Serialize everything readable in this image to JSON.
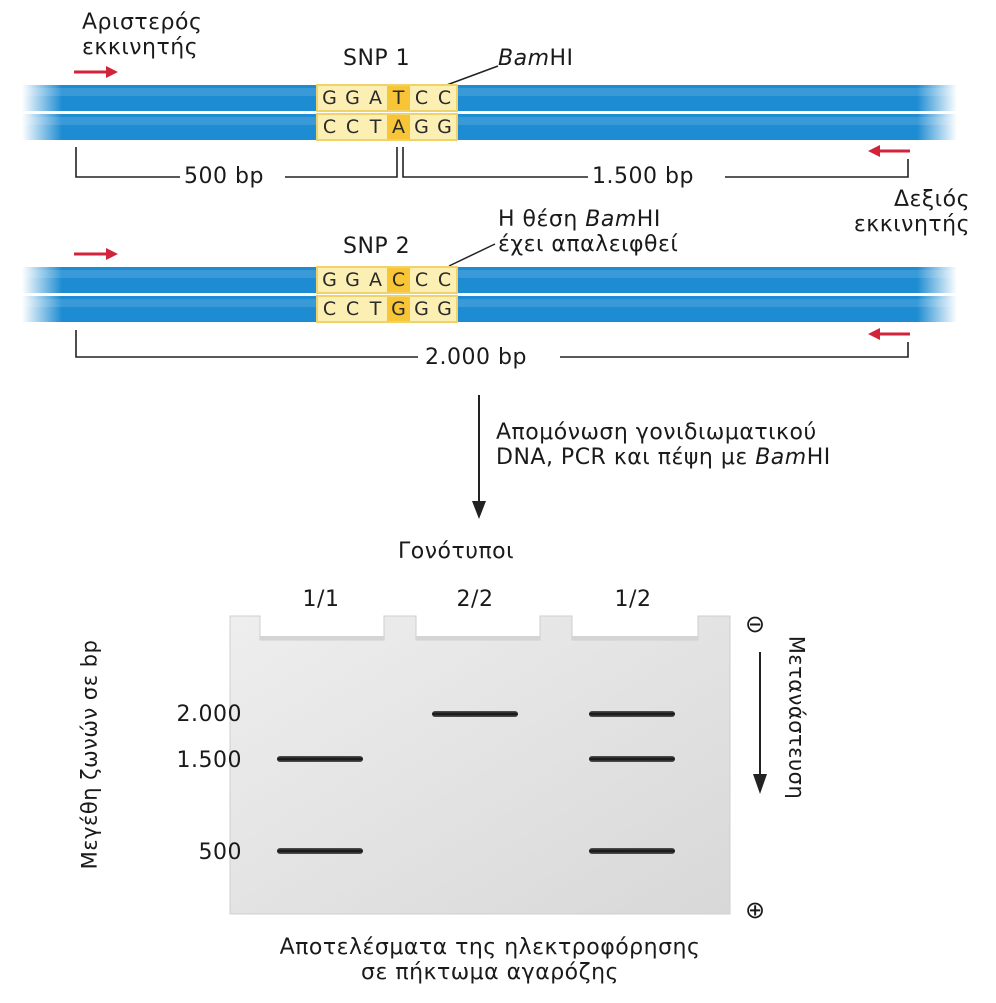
{
  "primers": {
    "left_label": [
      "Αριστερός",
      "εκκινητής"
    ],
    "right_label": [
      "Δεξιός",
      "εκκινητής"
    ]
  },
  "snp1": {
    "label": "SNP 1",
    "site_label": "Bam",
    "site_label_suffix": "HI",
    "top_strand": [
      "G",
      "G",
      "A",
      "T",
      "C",
      "C"
    ],
    "bottom_strand": [
      "C",
      "C",
      "T",
      "A",
      "G",
      "G"
    ],
    "highlight_index": 3,
    "left_fragment": "500 bp",
    "right_fragment": "1.500 bp"
  },
  "snp2": {
    "label": "SNP 2",
    "note_line1_prefix": "Η θέση ",
    "note_line1_em": "Bam",
    "note_line1_suffix": "HI",
    "note_line2": "έχει απαλειφθεί",
    "top_strand": [
      "G",
      "G",
      "A",
      "C",
      "C",
      "C"
    ],
    "bottom_strand": [
      "C",
      "C",
      "T",
      "G",
      "G",
      "G"
    ],
    "highlight_index": 3,
    "fragment": "2.000 bp"
  },
  "process": {
    "line1": "Απομόνωση γονιδιωματικού",
    "line2_prefix": "DNA, PCR και πέψη με ",
    "line2_em": "Bam",
    "line2_suffix": "HI"
  },
  "gel": {
    "genotypes_title": "Γονότυποι",
    "lanes": [
      "1/1",
      "2/2",
      "1/2"
    ],
    "size_axis_label": "Μεγέθη ζωνών σε bp",
    "size_ticks": [
      "2.000",
      "1.500",
      "500"
    ],
    "migration_label": "Μετανάστευση",
    "negative_symbol": "⊖",
    "positive_symbol": "⊕",
    "bands": {
      "1/1": [
        "1.500",
        "500"
      ],
      "2/2": [
        "2.000"
      ],
      "1/2": [
        "2.000",
        "1.500",
        "500"
      ]
    },
    "caption_line1": "Αποτελέσματα της ηλεκτροφόρησης",
    "caption_line2": "σε πήκτωμα αγαρόζης"
  },
  "colors": {
    "dna_blue": "#1e8cd2",
    "seq_bg": "#fcefb4",
    "seq_highlight": "#f7c535",
    "primer_red": "#d2233a",
    "gel_gray": "#e2e2e2"
  }
}
